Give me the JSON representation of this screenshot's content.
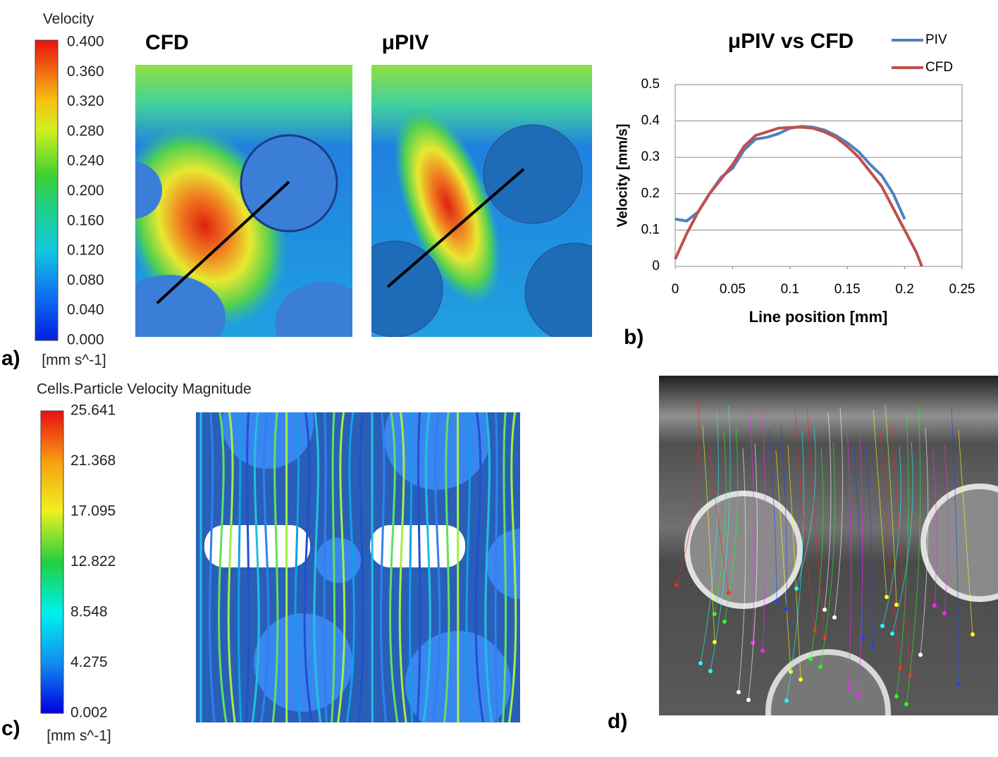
{
  "panel_a": {
    "label": "a)",
    "colorbar_title": "Velocity",
    "colorbar_labels": [
      "0.400",
      "0.360",
      "0.320",
      "0.280",
      "0.240",
      "0.200",
      "0.160",
      "0.120",
      "0.080",
      "0.040",
      "0.000"
    ],
    "colorbar_unit": "[mm s^-1]",
    "left_title": "CFD",
    "right_title": "μPIV"
  },
  "panel_b": {
    "label": "b)"
  },
  "panel_c": {
    "label": "c)",
    "colorbar_title": "Cells.Particle Velocity Magnitude",
    "colorbar_labels": [
      "25.641",
      "21.368",
      "17.095",
      "12.822",
      "8.548",
      "4.275",
      "0.002"
    ],
    "colorbar_unit": "[mm s^-1]"
  },
  "panel_d": {
    "label": "d)"
  },
  "chart_data": {
    "type": "line",
    "title": "μPIV vs CFD",
    "x_label": "Line position [mm]",
    "y_label": "Velocity  [mm/s]",
    "x": [
      0,
      0.01,
      0.02,
      0.03,
      0.04,
      0.05,
      0.06,
      0.07,
      0.08,
      0.09,
      0.1,
      0.11,
      0.12,
      0.13,
      0.14,
      0.15,
      0.16,
      0.17,
      0.18,
      0.19,
      0.2,
      0.21,
      0.215
    ],
    "series": [
      {
        "name": "PIV",
        "color": "#4f81bd",
        "values": [
          0.13,
          0.125,
          0.15,
          0.2,
          0.245,
          0.27,
          0.32,
          0.35,
          0.355,
          0.365,
          0.38,
          0.385,
          0.383,
          0.375,
          0.36,
          0.34,
          0.315,
          0.28,
          0.25,
          0.2,
          0.13,
          null,
          null
        ]
      },
      {
        "name": "CFD",
        "color": "#c0504d",
        "values": [
          0.02,
          0.09,
          0.15,
          0.2,
          0.24,
          0.28,
          0.33,
          0.36,
          0.37,
          0.38,
          0.382,
          0.383,
          0.38,
          0.37,
          0.355,
          0.33,
          0.3,
          0.26,
          0.22,
          0.16,
          0.1,
          0.04,
          0
        ]
      }
    ],
    "xlim": [
      0,
      0.25
    ],
    "ylim": [
      0,
      0.5
    ],
    "xticks": [
      0,
      0.05,
      0.1,
      0.15,
      0.2,
      0.25
    ],
    "yticks": [
      0,
      0.1,
      0.2,
      0.3,
      0.4,
      0.5
    ],
    "grid": true,
    "legend": "top-right"
  }
}
